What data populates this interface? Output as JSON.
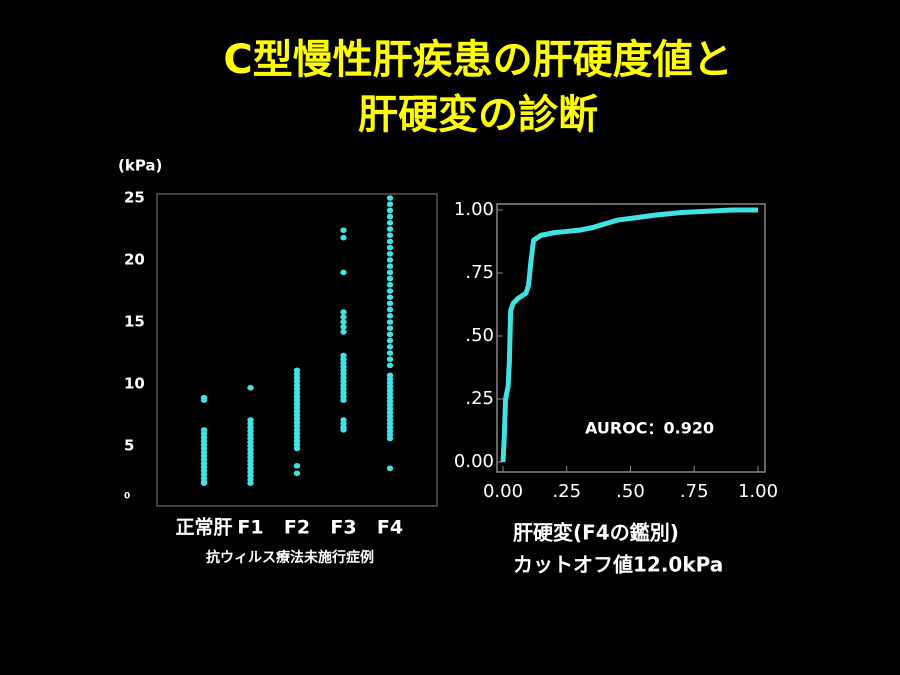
{
  "title_lines": [
    "C型慢性肝疾患の肝硬度値と",
    "肝硬変の診断"
  ],
  "chart_data": [
    {
      "type": "strip",
      "y_label": "(kPa)",
      "x_label": "抗ウィルス療法未施行症例",
      "categories": [
        "正常肝",
        "F1",
        "F2",
        "F3",
        "F4"
      ],
      "color": "#3fe3e3",
      "ylim": [
        0,
        25
      ],
      "yticks": [
        25,
        20,
        15,
        10,
        5,
        0
      ],
      "values": [
        [
          8.7,
          8.9,
          6.3,
          6.0,
          5.7,
          5.4,
          5.1,
          4.8,
          4.5,
          4.2,
          3.9,
          3.6,
          3.3,
          3.0,
          2.7,
          2.4,
          2.1,
          2.0
        ],
        [
          9.7,
          7.1,
          6.8,
          6.5,
          6.2,
          5.9,
          5.6,
          5.3,
          5.0,
          4.7,
          4.4,
          4.1,
          3.8,
          3.5,
          3.2,
          2.9,
          2.6,
          2.3,
          2.0
        ],
        [
          11.1,
          10.8,
          10.5,
          10.2,
          9.9,
          9.6,
          9.3,
          9.0,
          8.7,
          8.4,
          8.1,
          7.8,
          7.5,
          7.2,
          6.9,
          6.6,
          6.3,
          6.0,
          5.7,
          5.4,
          5.1,
          4.8,
          3.4,
          2.8
        ],
        [
          22.4,
          21.8,
          19.0,
          15.8,
          15.4,
          15.0,
          14.6,
          14.2,
          12.3,
          12.0,
          11.7,
          11.4,
          11.1,
          10.8,
          10.5,
          10.2,
          9.9,
          9.6,
          9.3,
          9.0,
          8.7,
          7.1,
          6.8,
          6.5,
          6.3
        ],
        [
          25,
          24.5,
          24,
          23.5,
          23,
          22.5,
          22,
          21.5,
          21,
          20.5,
          20,
          19.5,
          19,
          18.5,
          18,
          17.5,
          17,
          16.5,
          16,
          15.5,
          15,
          14.5,
          14,
          13.5,
          13,
          12.5,
          12,
          11.5,
          10.7,
          10.4,
          10.1,
          9.8,
          9.5,
          9.2,
          8.9,
          8.6,
          8.3,
          8.0,
          7.7,
          7.4,
          7.1,
          6.8,
          6.5,
          6.2,
          5.9,
          5.6,
          3.2
        ]
      ]
    },
    {
      "type": "line",
      "annotation": "AUROC：0.920",
      "notes": [
        "肝硬変(F4の鑑別)",
        "カットオフ値12.0kPa"
      ],
      "color": "#3fe3e3",
      "x": [
        0,
        0.005,
        0.01,
        0.02,
        0.025,
        0.03,
        0.04,
        0.06,
        0.09,
        0.1,
        0.11,
        0.12,
        0.15,
        0.2,
        0.3,
        0.35,
        0.45,
        0.6,
        0.7,
        0.9,
        1
      ],
      "values": [
        0,
        0.1,
        0.25,
        0.3,
        0.4,
        0.6,
        0.63,
        0.65,
        0.67,
        0.7,
        0.8,
        0.88,
        0.9,
        0.91,
        0.92,
        0.93,
        0.96,
        0.98,
        0.99,
        1,
        1
      ],
      "xlim": [
        0,
        1
      ],
      "ylim": [
        0,
        1
      ],
      "xticks": [
        {
          "value": 0,
          "label": "0.00"
        },
        {
          "value": 0.25,
          "label": ".25"
        },
        {
          "value": 0.5,
          "label": ".50"
        },
        {
          "value": 0.75,
          "label": ".75"
        },
        {
          "value": 1,
          "label": "1.00"
        }
      ],
      "yticks": [
        {
          "value": 0,
          "label": "0.00"
        },
        {
          "value": 0.25,
          "label": ".25"
        },
        {
          "value": 0.5,
          "label": ".50"
        },
        {
          "value": 0.75,
          "label": ".75"
        },
        {
          "value": 1,
          "label": "1.00"
        }
      ]
    }
  ]
}
